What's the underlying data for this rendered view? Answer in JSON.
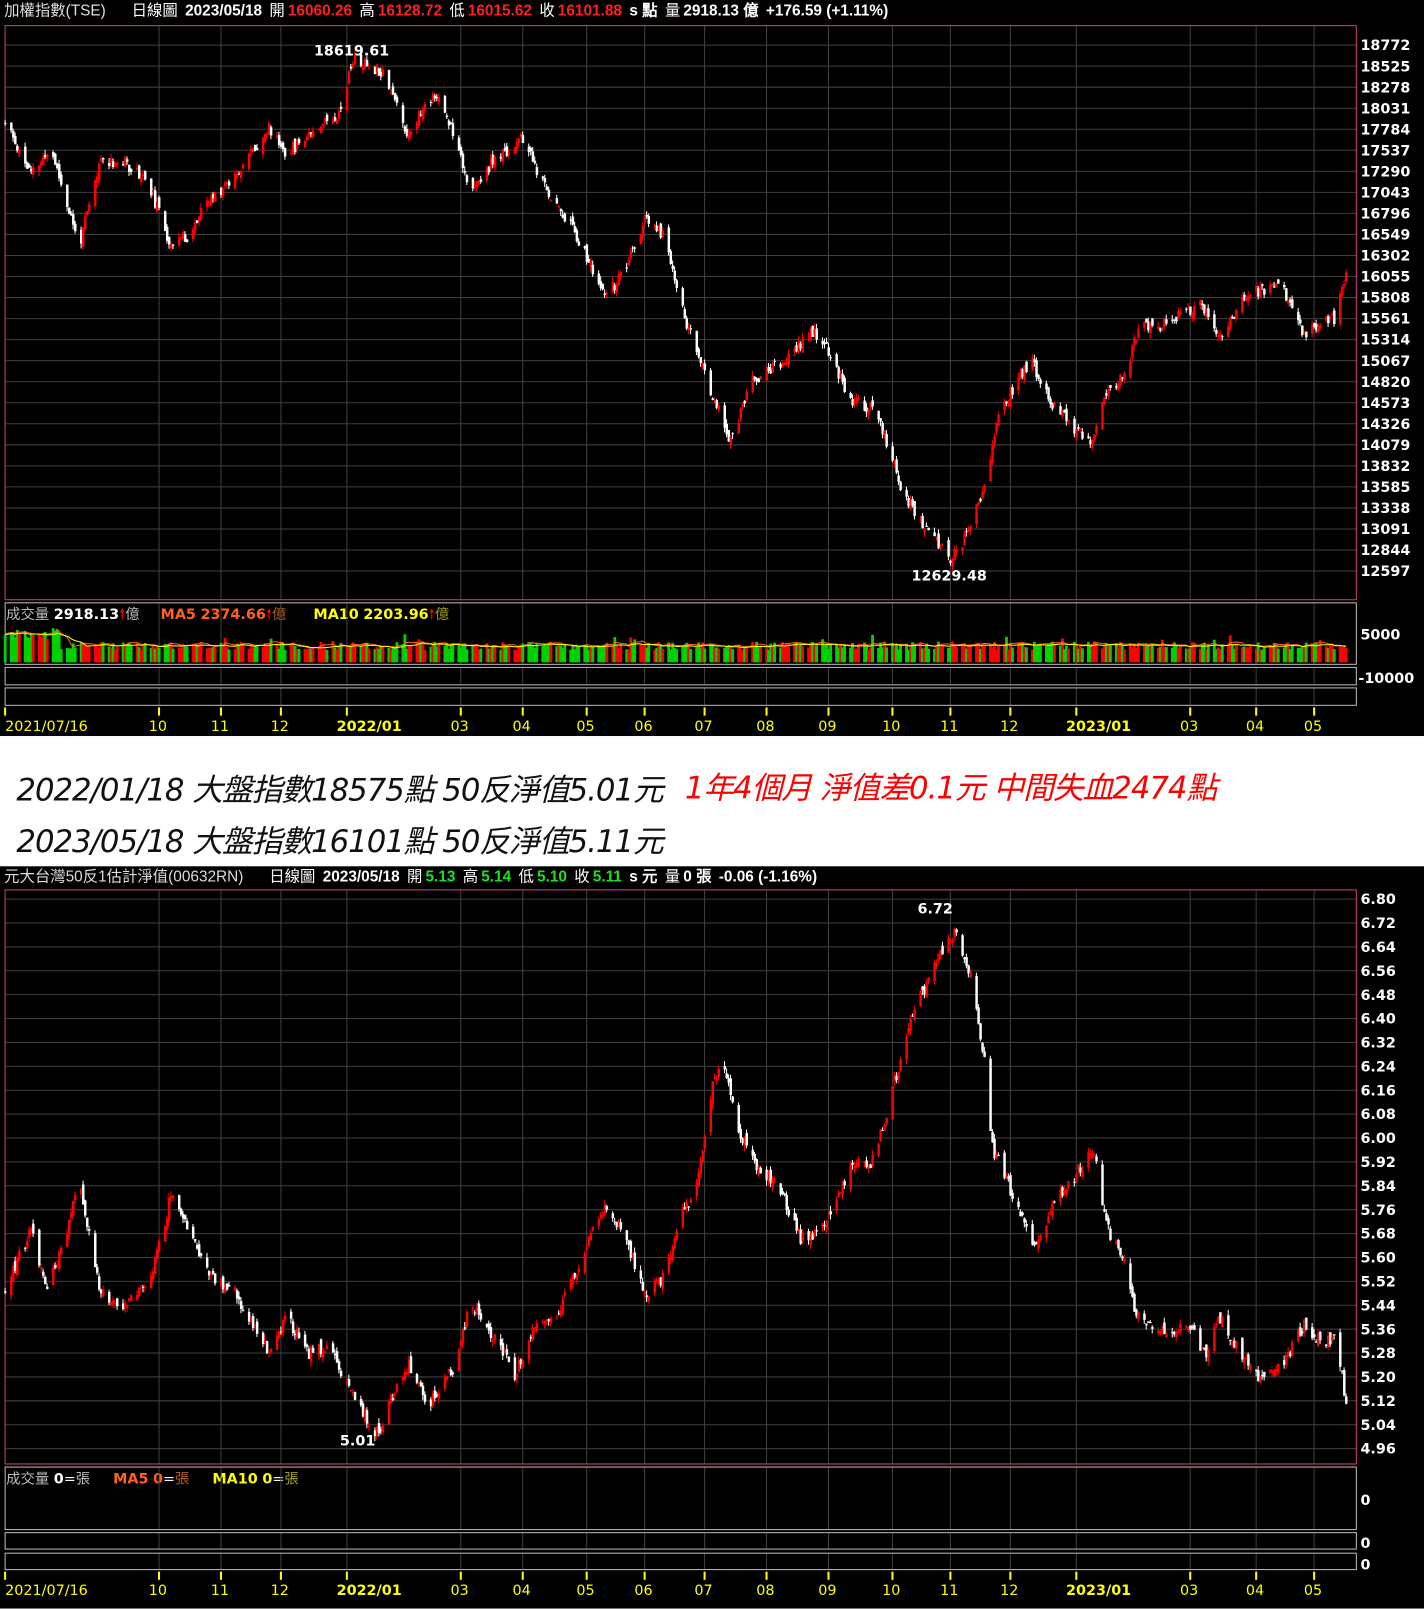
{
  "top": {
    "header": {
      "name": "加權指數(TSE)",
      "period": "日線圖",
      "date": "2023/05/18",
      "open_label": "開",
      "open": "16060.26",
      "high_label": "高",
      "high": "16128.72",
      "low_label": "低",
      "low": "16015.62",
      "close_label": "收",
      "close": "16101.88",
      "suffix": "s 點",
      "vol_label": "量",
      "volume": "2918.13 億",
      "change": "+176.59 (+1.11%)"
    },
    "volume_header": {
      "label": "成交量",
      "value": "2918.13",
      "unit": "億",
      "ma5_label": "MA5",
      "ma5": "2374.66",
      "ma10_label": "MA10",
      "ma10": "2203.96",
      "up_arrow": "🠕"
    },
    "volume_axis": [
      "5000",
      "-10000"
    ],
    "colors": {
      "up": "#ff0000",
      "down": "#ffffff",
      "vol_up": "#ff0000",
      "vol_down": "#00d000",
      "ma5": "#ff6020",
      "ma10": "#ffff00",
      "border": "#d04080",
      "grid": "#404040"
    }
  },
  "bottom": {
    "header": {
      "name": "元大台灣50反1估計淨值(00632RN)",
      "period": "日線圖",
      "date": "2023/05/18",
      "open_label": "開",
      "open": "5.13",
      "high_label": "高",
      "high": "5.14",
      "low_label": "低",
      "low": "5.10",
      "close_label": "收",
      "close": "5.11",
      "suffix": "s 元",
      "vol_label": "量",
      "volume": "0 張",
      "change": "-0.06 (-1.16%)"
    },
    "volume_header": {
      "label": "成交量",
      "value": "0",
      "unit": "張",
      "ma5_label": "MA5",
      "ma5": "0",
      "ma10_label": "MA10",
      "ma10": "0",
      "eq": "="
    },
    "volume_axis": [
      "0",
      "0",
      "0"
    ]
  },
  "annotation": {
    "line1": "2022/01/18 大盤指數18575點 50反淨值5.01元",
    "line2": "2023/05/18 大盤指數16101點 50反淨值5.11元",
    "highlight": "1年4個月 淨值差0.1元 中間失血2474點",
    "highlight_color": "#ff0000"
  },
  "chart_data": [
    {
      "type": "candlestick",
      "title": "加權指數(TSE)",
      "y_ticks": [
        "18772",
        "18525",
        "18278",
        "18031",
        "17784",
        "17537",
        "17290",
        "17043",
        "16796",
        "16549",
        "16302",
        "16055",
        "15808",
        "15561",
        "15314",
        "15067",
        "14820",
        "14573",
        "14326",
        "14079",
        "13832",
        "13585",
        "13338",
        "13091",
        "12844",
        "12597"
      ],
      "ylim": [
        12597,
        18772
      ],
      "x_range": [
        "2021-07-16",
        "2023-05-18"
      ],
      "x_ticks": [
        [
          "2021-07-16",
          "2021/07/16",
          0
        ],
        [
          "2021-10-01",
          "10",
          0
        ],
        [
          "2021-11-01",
          "11",
          0
        ],
        [
          "2021-12-01",
          "12",
          0
        ],
        [
          "2022-01-03",
          "2022/01",
          1
        ],
        [
          "2022-03-01",
          "03",
          0
        ],
        [
          "2022-04-01",
          "04",
          0
        ],
        [
          "2022-05-03",
          "05",
          0
        ],
        [
          "2022-06-01",
          "06",
          0
        ],
        [
          "2022-07-01",
          "07",
          0
        ],
        [
          "2022-08-01",
          "08",
          0
        ],
        [
          "2022-09-01",
          "09",
          0
        ],
        [
          "2022-10-03",
          "10",
          0
        ],
        [
          "2022-11-01",
          "11",
          0
        ],
        [
          "2022-12-01",
          "12",
          0
        ],
        [
          "2023-01-03",
          "2023/01",
          1
        ],
        [
          "2023-03-01",
          "03",
          0
        ],
        [
          "2023-04-03",
          "04",
          0
        ],
        [
          "2023-05-02",
          "05",
          0
        ]
      ],
      "closes_approx": [
        [
          "2021-07-16",
          17856
        ],
        [
          "2021-07-29",
          17254
        ],
        [
          "2021-08-08",
          17555
        ],
        [
          "2021-08-22",
          16410
        ],
        [
          "2021-09-02",
          17435
        ],
        [
          "2021-09-15",
          17375
        ],
        [
          "2021-09-25",
          17193
        ],
        [
          "2021-10-06",
          16470
        ],
        [
          "2021-10-16",
          16530
        ],
        [
          "2021-10-24",
          16892
        ],
        [
          "2021-11-08",
          17254
        ],
        [
          "2021-11-25",
          17796
        ],
        [
          "2021-12-04",
          17495
        ],
        [
          "2021-12-17",
          17796
        ],
        [
          "2021-12-30",
          17977
        ],
        [
          "2022-01-06",
          18603
        ],
        [
          "2022-01-22",
          18459
        ],
        [
          "2022-02-02",
          17736
        ],
        [
          "2022-02-16",
          18218
        ],
        [
          "2022-02-27",
          17675
        ],
        [
          "2022-03-06",
          17013
        ],
        [
          "2022-03-16",
          17375
        ],
        [
          "2022-04-01",
          17675
        ],
        [
          "2022-04-11",
          17133
        ],
        [
          "2022-04-27",
          16591
        ],
        [
          "2022-05-12",
          15808
        ],
        [
          "2022-05-22",
          16109
        ],
        [
          "2022-06-01",
          16712
        ],
        [
          "2022-06-11",
          16530
        ],
        [
          "2022-06-21",
          15567
        ],
        [
          "2022-07-02",
          14844
        ],
        [
          "2022-07-14",
          14121
        ],
        [
          "2022-07-25",
          14844
        ],
        [
          "2022-08-03",
          14964
        ],
        [
          "2022-08-12",
          15085
        ],
        [
          "2022-08-23",
          15422
        ],
        [
          "2022-09-02",
          15145
        ],
        [
          "2022-09-12",
          14603
        ],
        [
          "2022-09-25",
          14482
        ],
        [
          "2022-10-08",
          13518
        ],
        [
          "2022-10-21",
          13036
        ],
        [
          "2022-11-01",
          12735
        ],
        [
          "2022-11-10",
          13036
        ],
        [
          "2022-11-18",
          13638
        ],
        [
          "2022-11-26",
          14482
        ],
        [
          "2022-12-11",
          15085
        ],
        [
          "2022-12-21",
          14603
        ],
        [
          "2023-01-02",
          14241
        ],
        [
          "2023-01-11",
          14121
        ],
        [
          "2023-01-18",
          14723
        ],
        [
          "2023-01-28",
          14904
        ],
        [
          "2023-02-03",
          15446
        ],
        [
          "2023-02-18",
          15506
        ],
        [
          "2023-03-06",
          15747
        ],
        [
          "2023-03-16",
          15326
        ],
        [
          "2023-03-29",
          15868
        ],
        [
          "2023-04-16",
          15928
        ],
        [
          "2023-04-26",
          15386
        ],
        [
          "2023-05-12",
          15567
        ],
        [
          "2023-05-18",
          16101.88
        ]
      ],
      "annotations": [
        [
          "2022-01-05",
          "18619.61",
          "high"
        ],
        [
          "2022-10-31",
          "12629.48",
          "low"
        ]
      ]
    },
    {
      "type": "candlestick",
      "title": "元大台灣50反1估計淨值(00632RN)",
      "y_ticks": [
        "6.80",
        "6.72",
        "6.64",
        "6.56",
        "6.48",
        "6.40",
        "6.32",
        "6.24",
        "6.16",
        "6.08",
        "6.00",
        "5.92",
        "5.84",
        "5.76",
        "5.68",
        "5.60",
        "5.52",
        "5.44",
        "5.36",
        "5.28",
        "5.20",
        "5.12",
        "5.04",
        "4.96"
      ],
      "ylim": [
        4.96,
        6.8
      ],
      "x_range": [
        "2021-07-16",
        "2023-05-18"
      ],
      "x_ticks": [
        [
          "2021-07-16",
          "2021/07/16",
          0
        ],
        [
          "2021-10-01",
          "10",
          0
        ],
        [
          "2021-11-01",
          "11",
          0
        ],
        [
          "2021-12-01",
          "12",
          0
        ],
        [
          "2022-01-03",
          "2022/01",
          1
        ],
        [
          "2022-03-01",
          "03",
          0
        ],
        [
          "2022-04-01",
          "04",
          0
        ],
        [
          "2022-05-03",
          "05",
          0
        ],
        [
          "2022-06-01",
          "06",
          0
        ],
        [
          "2022-07-01",
          "07",
          0
        ],
        [
          "2022-08-01",
          "08",
          0
        ],
        [
          "2022-09-01",
          "09",
          0
        ],
        [
          "2022-10-03",
          "10",
          0
        ],
        [
          "2022-11-01",
          "11",
          0
        ],
        [
          "2022-12-01",
          "12",
          0
        ],
        [
          "2023-01-03",
          "2023/01",
          1
        ],
        [
          "2023-03-01",
          "03",
          0
        ],
        [
          "2023-04-03",
          "04",
          0
        ],
        [
          "2023-05-02",
          "05",
          0
        ]
      ],
      "closes_approx": [
        [
          "2021-07-16",
          5.5
        ],
        [
          "2021-07-29",
          5.69
        ],
        [
          "2021-08-05",
          5.5
        ],
        [
          "2021-08-15",
          5.66
        ],
        [
          "2021-08-22",
          5.86
        ],
        [
          "2021-09-02",
          5.48
        ],
        [
          "2021-09-10",
          5.43
        ],
        [
          "2021-09-20",
          5.47
        ],
        [
          "2021-09-28",
          5.55
        ],
        [
          "2021-10-07",
          5.81
        ],
        [
          "2021-10-16",
          5.69
        ],
        [
          "2021-10-26",
          5.55
        ],
        [
          "2021-11-08",
          5.48
        ],
        [
          "2021-11-19",
          5.35
        ],
        [
          "2021-11-26",
          5.28
        ],
        [
          "2021-12-04",
          5.4
        ],
        [
          "2021-12-14",
          5.28
        ],
        [
          "2021-12-24",
          5.3
        ],
        [
          "2022-01-06",
          5.14
        ],
        [
          "2022-01-18",
          5.01
        ],
        [
          "2022-01-26",
          5.14
        ],
        [
          "2022-02-03",
          5.24
        ],
        [
          "2022-02-13",
          5.11
        ],
        [
          "2022-02-26",
          5.24
        ],
        [
          "2022-03-06",
          5.45
        ],
        [
          "2022-03-16",
          5.35
        ],
        [
          "2022-03-28",
          5.21
        ],
        [
          "2022-04-08",
          5.38
        ],
        [
          "2022-04-18",
          5.4
        ],
        [
          "2022-04-28",
          5.55
        ],
        [
          "2022-05-12",
          5.78
        ],
        [
          "2022-05-23",
          5.66
        ],
        [
          "2022-06-01",
          5.48
        ],
        [
          "2022-06-11",
          5.54
        ],
        [
          "2022-06-18",
          5.73
        ],
        [
          "2022-06-27",
          5.83
        ],
        [
          "2022-07-05",
          6.17
        ],
        [
          "2022-07-10",
          6.27
        ],
        [
          "2022-07-18",
          6.03
        ],
        [
          "2022-07-28",
          5.9
        ],
        [
          "2022-08-08",
          5.83
        ],
        [
          "2022-08-18",
          5.66
        ],
        [
          "2022-08-28",
          5.69
        ],
        [
          "2022-09-05",
          5.79
        ],
        [
          "2022-09-13",
          5.93
        ],
        [
          "2022-09-21",
          5.9
        ],
        [
          "2022-09-28",
          6.03
        ],
        [
          "2022-10-06",
          6.24
        ],
        [
          "2022-10-14",
          6.45
        ],
        [
          "2022-10-21",
          6.52
        ],
        [
          "2022-10-29",
          6.65
        ],
        [
          "2022-11-03",
          6.69
        ],
        [
          "2022-11-11",
          6.55
        ],
        [
          "2022-11-18",
          6.27
        ],
        [
          "2022-11-22",
          5.97
        ],
        [
          "2022-12-01",
          5.83
        ],
        [
          "2022-12-13",
          5.62
        ],
        [
          "2022-12-21",
          5.76
        ],
        [
          "2023-01-01",
          5.86
        ],
        [
          "2023-01-11",
          5.97
        ],
        [
          "2023-01-19",
          5.69
        ],
        [
          "2023-01-28",
          5.59
        ],
        [
          "2023-02-01",
          5.42
        ],
        [
          "2023-02-14",
          5.35
        ],
        [
          "2023-03-01",
          5.36
        ],
        [
          "2023-03-09",
          5.28
        ],
        [
          "2023-03-16",
          5.4
        ],
        [
          "2023-03-27",
          5.26
        ],
        [
          "2023-04-06",
          5.19
        ],
        [
          "2023-04-16",
          5.24
        ],
        [
          "2023-04-27",
          5.38
        ],
        [
          "2023-05-07",
          5.31
        ],
        [
          "2023-05-13",
          5.33
        ],
        [
          "2023-05-18",
          5.11
        ]
      ],
      "annotations": [
        [
          "2022-11-03",
          "6.72",
          "high"
        ],
        [
          "2022-01-18",
          "5.01",
          "low"
        ]
      ]
    }
  ]
}
